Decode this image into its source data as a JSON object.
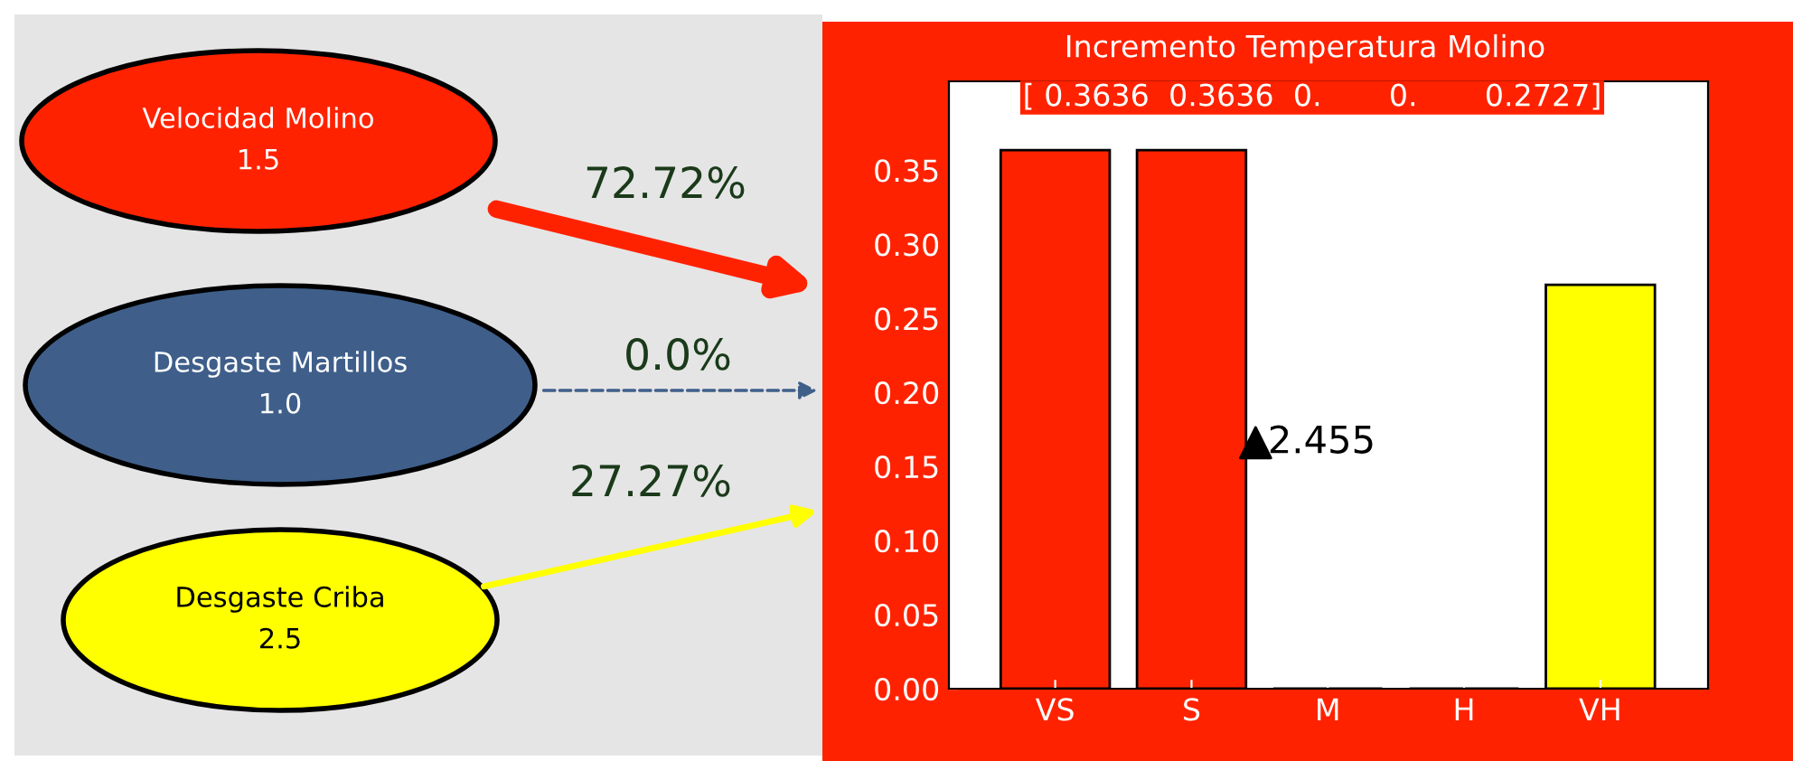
{
  "chart_data": {
    "type": "bar",
    "title": "Incremento Temperatura Molino",
    "subtitle": "[ 0.3636  0.3636  0.       0.       0.2727]",
    "categories": [
      "VS",
      "S",
      "M",
      "H",
      "VH"
    ],
    "values": [
      0.3636,
      0.3636,
      0,
      0,
      0.2727
    ],
    "colors": [
      "#ff2200",
      "#ff2200",
      "#ff2200",
      "#ff2200",
      "#ffff00"
    ],
    "ylim": [
      0,
      0.41
    ],
    "yticks": [
      {
        "value": 0,
        "label": "0.00"
      },
      0.05,
      {
        "value": 0.1,
        "label": "0.10"
      },
      0.15,
      {
        "value": 0.2,
        "label": "0.20"
      },
      0.25,
      {
        "value": 0.3,
        "label": "0.30"
      },
      0.35
    ],
    "grid": false,
    "annotations": [
      "Velocidad Molino\n1.5",
      "Desgaste Martillos\n1.0",
      "Desgaste Criba\n2.5",
      "72.72%",
      "0.0%",
      "27.27%",
      "2.455"
    ]
  }
}
